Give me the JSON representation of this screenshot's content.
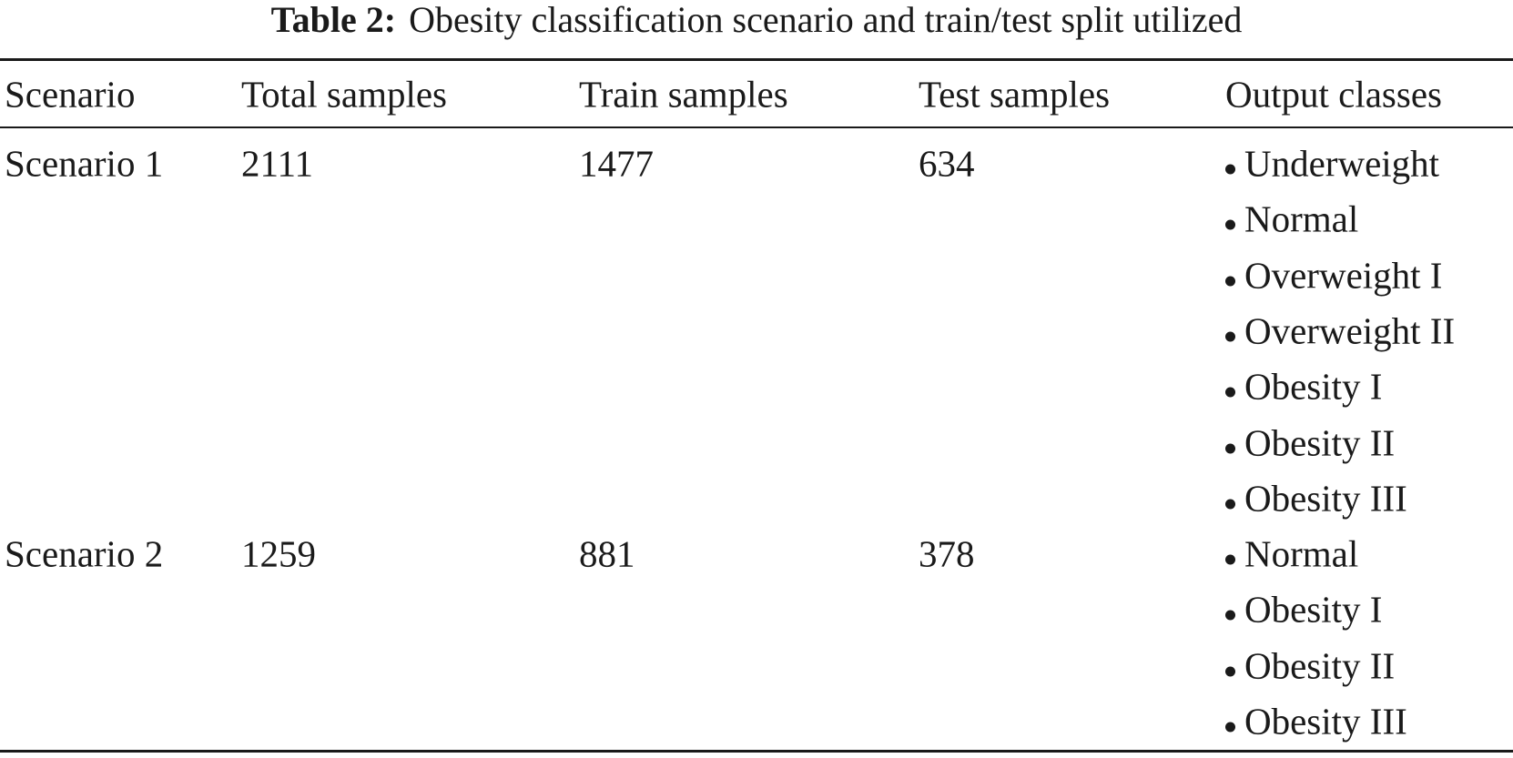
{
  "caption": {
    "label": "Table 2:",
    "text": "Obesity classification scenario and train/test split utilized"
  },
  "table": {
    "headers": [
      "Scenario",
      "Total samples",
      "Train samples",
      "Test samples",
      "Output classes"
    ],
    "rows": [
      {
        "scenario": "Scenario 1",
        "total": 2111,
        "train": 1477,
        "test": 634,
        "classes": [
          "Underweight",
          "Normal",
          "Overweight I",
          "Overweight II",
          "Obesity I",
          "Obesity II",
          "Obesity III"
        ]
      },
      {
        "scenario": "Scenario 2",
        "total": 1259,
        "train": 881,
        "test": 378,
        "classes": [
          "Normal",
          "Obesity I",
          "Obesity II",
          "Obesity III"
        ]
      }
    ]
  }
}
